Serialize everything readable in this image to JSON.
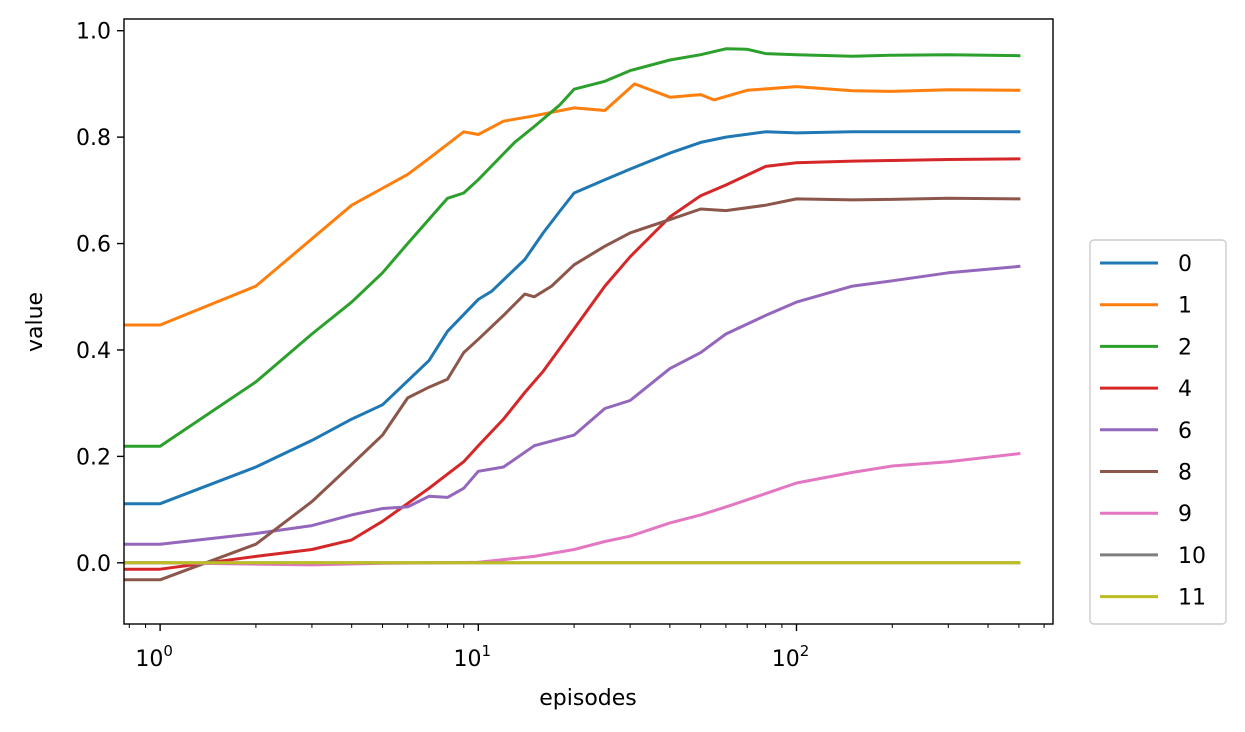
{
  "chart_data": {
    "type": "line",
    "xlabel": "episodes",
    "ylabel": "value",
    "xscale": "log",
    "xlim": [
      0.77,
      640
    ],
    "ylim": [
      -0.115,
      1.022
    ],
    "x_ticks": [
      {
        "value": 1,
        "base": "10",
        "exp": "0"
      },
      {
        "value": 10,
        "base": "10",
        "exp": "1"
      },
      {
        "value": 100,
        "base": "10",
        "exp": "2"
      }
    ],
    "y_ticks": [
      {
        "value": 0.0,
        "label": "0.0"
      },
      {
        "value": 0.2,
        "label": "0.2"
      },
      {
        "value": 0.4,
        "label": "0.4"
      },
      {
        "value": 0.6,
        "label": "0.6"
      },
      {
        "value": 0.8,
        "label": "0.8"
      },
      {
        "value": 1.0,
        "label": "1.0"
      }
    ],
    "grid": false,
    "legend_position": "outside right",
    "series": [
      {
        "name": "0",
        "color": "#1f77b4",
        "points": [
          [
            0.77,
            0.111
          ],
          [
            1,
            0.111
          ],
          [
            2,
            0.18
          ],
          [
            3,
            0.23
          ],
          [
            4,
            0.27
          ],
          [
            5,
            0.297
          ],
          [
            7,
            0.38
          ],
          [
            8,
            0.435
          ],
          [
            10,
            0.495
          ],
          [
            11,
            0.51
          ],
          [
            14,
            0.57
          ],
          [
            16,
            0.62
          ],
          [
            18,
            0.66
          ],
          [
            20,
            0.695
          ],
          [
            25,
            0.72
          ],
          [
            30,
            0.74
          ],
          [
            40,
            0.77
          ],
          [
            50,
            0.79
          ],
          [
            60,
            0.8
          ],
          [
            80,
            0.81
          ],
          [
            100,
            0.808
          ],
          [
            150,
            0.81
          ],
          [
            200,
            0.81
          ],
          [
            300,
            0.81
          ],
          [
            500,
            0.81
          ]
        ]
      },
      {
        "name": "1",
        "color": "#ff7f0e",
        "points": [
          [
            0.77,
            0.447
          ],
          [
            1,
            0.447
          ],
          [
            2,
            0.52
          ],
          [
            4,
            0.672
          ],
          [
            6,
            0.73
          ],
          [
            7,
            0.76
          ],
          [
            9,
            0.81
          ],
          [
            10,
            0.805
          ],
          [
            12,
            0.83
          ],
          [
            15,
            0.84
          ],
          [
            20,
            0.855
          ],
          [
            25,
            0.85
          ],
          [
            31,
            0.9
          ],
          [
            40,
            0.875
          ],
          [
            50,
            0.88
          ],
          [
            55,
            0.87
          ],
          [
            70,
            0.888
          ],
          [
            100,
            0.895
          ],
          [
            150,
            0.887
          ],
          [
            200,
            0.886
          ],
          [
            300,
            0.889
          ],
          [
            500,
            0.888
          ]
        ]
      },
      {
        "name": "2",
        "color": "#2ca02c",
        "points": [
          [
            0.77,
            0.219
          ],
          [
            1,
            0.219
          ],
          [
            2,
            0.34
          ],
          [
            3,
            0.43
          ],
          [
            4,
            0.49
          ],
          [
            5,
            0.545
          ],
          [
            6,
            0.6
          ],
          [
            8,
            0.685
          ],
          [
            9,
            0.695
          ],
          [
            10,
            0.72
          ],
          [
            13,
            0.79
          ],
          [
            15,
            0.82
          ],
          [
            18,
            0.86
          ],
          [
            20,
            0.89
          ],
          [
            25,
            0.905
          ],
          [
            30,
            0.925
          ],
          [
            40,
            0.945
          ],
          [
            50,
            0.955
          ],
          [
            60,
            0.966
          ],
          [
            70,
            0.965
          ],
          [
            80,
            0.957
          ],
          [
            100,
            0.955
          ],
          [
            150,
            0.952
          ],
          [
            200,
            0.954
          ],
          [
            300,
            0.955
          ],
          [
            500,
            0.953
          ]
        ]
      },
      {
        "name": "4",
        "color": "#d62728",
        "points": [
          [
            0.77,
            -0.012
          ],
          [
            1,
            -0.012
          ],
          [
            2,
            0.012
          ],
          [
            3,
            0.025
          ],
          [
            4,
            0.043
          ],
          [
            5,
            0.078
          ],
          [
            7,
            0.14
          ],
          [
            9,
            0.19
          ],
          [
            10,
            0.22
          ],
          [
            12,
            0.27
          ],
          [
            14,
            0.32
          ],
          [
            16,
            0.36
          ],
          [
            20,
            0.44
          ],
          [
            25,
            0.52
          ],
          [
            30,
            0.575
          ],
          [
            40,
            0.65
          ],
          [
            50,
            0.69
          ],
          [
            60,
            0.71
          ],
          [
            80,
            0.745
          ],
          [
            100,
            0.752
          ],
          [
            150,
            0.755
          ],
          [
            200,
            0.756
          ],
          [
            300,
            0.758
          ],
          [
            500,
            0.759
          ]
        ]
      },
      {
        "name": "6",
        "color": "#9467bd",
        "points": [
          [
            0.77,
            0.035
          ],
          [
            1,
            0.035
          ],
          [
            2,
            0.055
          ],
          [
            3,
            0.07
          ],
          [
            4,
            0.09
          ],
          [
            5,
            0.102
          ],
          [
            6,
            0.105
          ],
          [
            7,
            0.125
          ],
          [
            8,
            0.123
          ],
          [
            9,
            0.14
          ],
          [
            10,
            0.172
          ],
          [
            12,
            0.18
          ],
          [
            15,
            0.22
          ],
          [
            20,
            0.24
          ],
          [
            25,
            0.29
          ],
          [
            30,
            0.305
          ],
          [
            40,
            0.365
          ],
          [
            50,
            0.395
          ],
          [
            60,
            0.43
          ],
          [
            80,
            0.465
          ],
          [
            100,
            0.49
          ],
          [
            150,
            0.52
          ],
          [
            200,
            0.53
          ],
          [
            300,
            0.545
          ],
          [
            500,
            0.557
          ]
        ]
      },
      {
        "name": "8",
        "color": "#8c564b",
        "points": [
          [
            0.77,
            -0.032
          ],
          [
            1,
            -0.032
          ],
          [
            2,
            0.035
          ],
          [
            3,
            0.115
          ],
          [
            4,
            0.185
          ],
          [
            5,
            0.24
          ],
          [
            6,
            0.31
          ],
          [
            7,
            0.33
          ],
          [
            8,
            0.345
          ],
          [
            9,
            0.395
          ],
          [
            10,
            0.42
          ],
          [
            12,
            0.465
          ],
          [
            14,
            0.505
          ],
          [
            15,
            0.5
          ],
          [
            17,
            0.52
          ],
          [
            20,
            0.56
          ],
          [
            25,
            0.595
          ],
          [
            30,
            0.62
          ],
          [
            40,
            0.645
          ],
          [
            50,
            0.665
          ],
          [
            60,
            0.662
          ],
          [
            80,
            0.672
          ],
          [
            100,
            0.684
          ],
          [
            150,
            0.682
          ],
          [
            200,
            0.683
          ],
          [
            300,
            0.685
          ],
          [
            500,
            0.684
          ]
        ]
      },
      {
        "name": "9",
        "color": "#e377c2",
        "points": [
          [
            0.77,
            0.0
          ],
          [
            1,
            0.0
          ],
          [
            3,
            -0.004
          ],
          [
            5,
            -0.001
          ],
          [
            8,
            0.0
          ],
          [
            10,
            0.001
          ],
          [
            15,
            0.012
          ],
          [
            20,
            0.025
          ],
          [
            25,
            0.04
          ],
          [
            30,
            0.05
          ],
          [
            40,
            0.075
          ],
          [
            50,
            0.09
          ],
          [
            60,
            0.105
          ],
          [
            80,
            0.13
          ],
          [
            100,
            0.15
          ],
          [
            150,
            0.17
          ],
          [
            200,
            0.182
          ],
          [
            300,
            0.19
          ],
          [
            500,
            0.205
          ]
        ]
      },
      {
        "name": "10",
        "color": "#7f7f7f",
        "points": [
          [
            0.77,
            0.0
          ],
          [
            500,
            0.0
          ]
        ]
      },
      {
        "name": "11",
        "color": "#bcbd22",
        "points": [
          [
            0.77,
            0.0
          ],
          [
            500,
            0.0
          ]
        ]
      }
    ]
  }
}
